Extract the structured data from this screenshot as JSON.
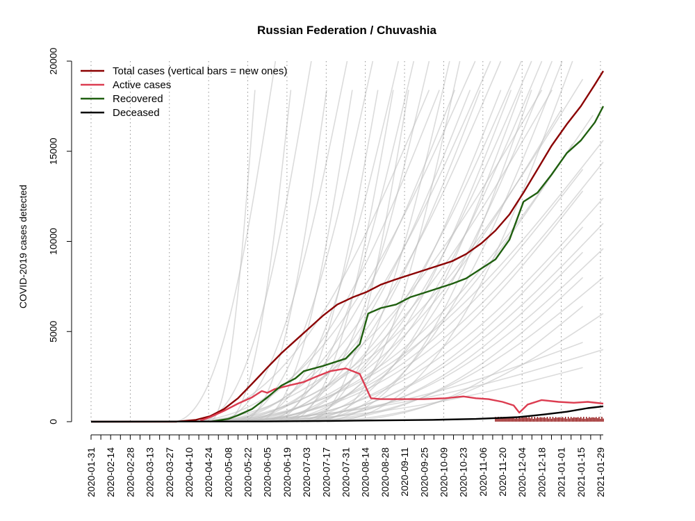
{
  "chart_data": {
    "type": "line",
    "title": "Russian Federation / Chuvashia",
    "ylabel": "COVID-2019 cases detected",
    "ylim": [
      0,
      20000
    ],
    "yticks": [
      0,
      5000,
      10000,
      15000,
      20000
    ],
    "xlim": [
      "2020-01-31",
      "2021-01-31"
    ],
    "xticks": [
      "2020-01-31",
      "2020-02-14",
      "2020-02-28",
      "2020-03-13",
      "2020-03-27",
      "2020-04-10",
      "2020-04-24",
      "2020-05-08",
      "2020-05-22",
      "2020-06-05",
      "2020-06-19",
      "2020-07-03",
      "2020-07-17",
      "2020-07-31",
      "2020-08-14",
      "2020-08-28",
      "2020-09-11",
      "2020-09-25",
      "2020-10-09",
      "2020-10-23",
      "2020-11-06",
      "2020-11-20",
      "2020-12-04",
      "2020-12-18",
      "2021-01-01",
      "2021-01-15",
      "2021-01-29"
    ],
    "legend_position": "top-left",
    "legend": [
      {
        "label": "Total cases (vertical bars = new ones)",
        "color": "#8b0000"
      },
      {
        "label": "Active cases",
        "color": "#dc3c50"
      },
      {
        "label": "Recovered",
        "color": "#1f5f0f"
      },
      {
        "label": "Deceased",
        "color": "#000000"
      }
    ],
    "series": [
      {
        "key": "total",
        "color": "#8b0000",
        "points": [
          [
            "2020-01-31",
            0
          ],
          [
            "2020-04-01",
            0
          ],
          [
            "2020-04-15",
            100
          ],
          [
            "2020-04-25",
            300
          ],
          [
            "2020-05-05",
            700
          ],
          [
            "2020-05-15",
            1300
          ],
          [
            "2020-05-25",
            2100
          ],
          [
            "2020-06-05",
            3000
          ],
          [
            "2020-06-15",
            3800
          ],
          [
            "2020-06-25",
            4500
          ],
          [
            "2020-07-05",
            5200
          ],
          [
            "2020-07-15",
            5900
          ],
          [
            "2020-07-25",
            6500
          ],
          [
            "2020-08-05",
            6900
          ],
          [
            "2020-08-15",
            7200
          ],
          [
            "2020-08-25",
            7600
          ],
          [
            "2020-09-05",
            7900
          ],
          [
            "2020-09-15",
            8150
          ],
          [
            "2020-09-25",
            8400
          ],
          [
            "2020-10-05",
            8650
          ],
          [
            "2020-10-15",
            8900
          ],
          [
            "2020-10-25",
            9300
          ],
          [
            "2020-11-05",
            9900
          ],
          [
            "2020-11-15",
            10600
          ],
          [
            "2020-11-25",
            11500
          ],
          [
            "2020-12-05",
            12700
          ],
          [
            "2020-12-15",
            14000
          ],
          [
            "2020-12-25",
            15300
          ],
          [
            "2021-01-05",
            16500
          ],
          [
            "2021-01-15",
            17500
          ],
          [
            "2021-01-25",
            18700
          ],
          [
            "2021-01-31",
            19450
          ]
        ]
      },
      {
        "key": "active",
        "color": "#dc3c50",
        "points": [
          [
            "2020-04-18",
            50
          ],
          [
            "2020-04-25",
            250
          ],
          [
            "2020-05-05",
            600
          ],
          [
            "2020-05-15",
            1000
          ],
          [
            "2020-05-25",
            1350
          ],
          [
            "2020-06-01",
            1700
          ],
          [
            "2020-06-05",
            1600
          ],
          [
            "2020-06-10",
            1800
          ],
          [
            "2020-06-20",
            2000
          ],
          [
            "2020-07-01",
            2200
          ],
          [
            "2020-07-10",
            2500
          ],
          [
            "2020-07-20",
            2800
          ],
          [
            "2020-07-31",
            2950
          ],
          [
            "2020-08-10",
            2650
          ],
          [
            "2020-08-18",
            1300
          ],
          [
            "2020-08-25",
            1250
          ],
          [
            "2020-09-10",
            1250
          ],
          [
            "2020-09-25",
            1250
          ],
          [
            "2020-10-10",
            1300
          ],
          [
            "2020-10-23",
            1400
          ],
          [
            "2020-11-01",
            1300
          ],
          [
            "2020-11-10",
            1250
          ],
          [
            "2020-11-20",
            1100
          ],
          [
            "2020-11-28",
            900
          ],
          [
            "2020-12-02",
            500
          ],
          [
            "2020-12-08",
            950
          ],
          [
            "2020-12-18",
            1200
          ],
          [
            "2020-12-30",
            1100
          ],
          [
            "2021-01-10",
            1050
          ],
          [
            "2021-01-20",
            1100
          ],
          [
            "2021-01-31",
            1000
          ]
        ]
      },
      {
        "key": "recovered",
        "color": "#1f5f0f",
        "points": [
          [
            "2020-04-25",
            0
          ],
          [
            "2020-05-08",
            150
          ],
          [
            "2020-05-15",
            350
          ],
          [
            "2020-05-25",
            700
          ],
          [
            "2020-06-05",
            1350
          ],
          [
            "2020-06-15",
            2000
          ],
          [
            "2020-06-25",
            2400
          ],
          [
            "2020-07-01",
            2800
          ],
          [
            "2020-07-15",
            3100
          ],
          [
            "2020-07-31",
            3500
          ],
          [
            "2020-08-10",
            4300
          ],
          [
            "2020-08-16",
            6000
          ],
          [
            "2020-08-25",
            6300
          ],
          [
            "2020-09-05",
            6500
          ],
          [
            "2020-09-15",
            6900
          ],
          [
            "2020-09-25",
            7150
          ],
          [
            "2020-10-05",
            7400
          ],
          [
            "2020-10-15",
            7650
          ],
          [
            "2020-10-25",
            7950
          ],
          [
            "2020-11-05",
            8500
          ],
          [
            "2020-11-15",
            9000
          ],
          [
            "2020-11-25",
            10100
          ],
          [
            "2020-12-05",
            12200
          ],
          [
            "2020-12-15",
            12700
          ],
          [
            "2020-12-25",
            13700
          ],
          [
            "2021-01-05",
            14900
          ],
          [
            "2021-01-15",
            15600
          ],
          [
            "2021-01-25",
            16600
          ],
          [
            "2021-01-31",
            17500
          ]
        ]
      },
      {
        "key": "deceased",
        "color": "#000000",
        "points": [
          [
            "2020-01-31",
            0
          ],
          [
            "2020-06-01",
            10
          ],
          [
            "2020-08-01",
            50
          ],
          [
            "2020-10-01",
            100
          ],
          [
            "2020-11-01",
            150
          ],
          [
            "2020-12-01",
            250
          ],
          [
            "2020-12-20",
            400
          ],
          [
            "2021-01-05",
            550
          ],
          [
            "2021-01-20",
            750
          ],
          [
            "2021-01-31",
            850
          ]
        ]
      }
    ]
  }
}
